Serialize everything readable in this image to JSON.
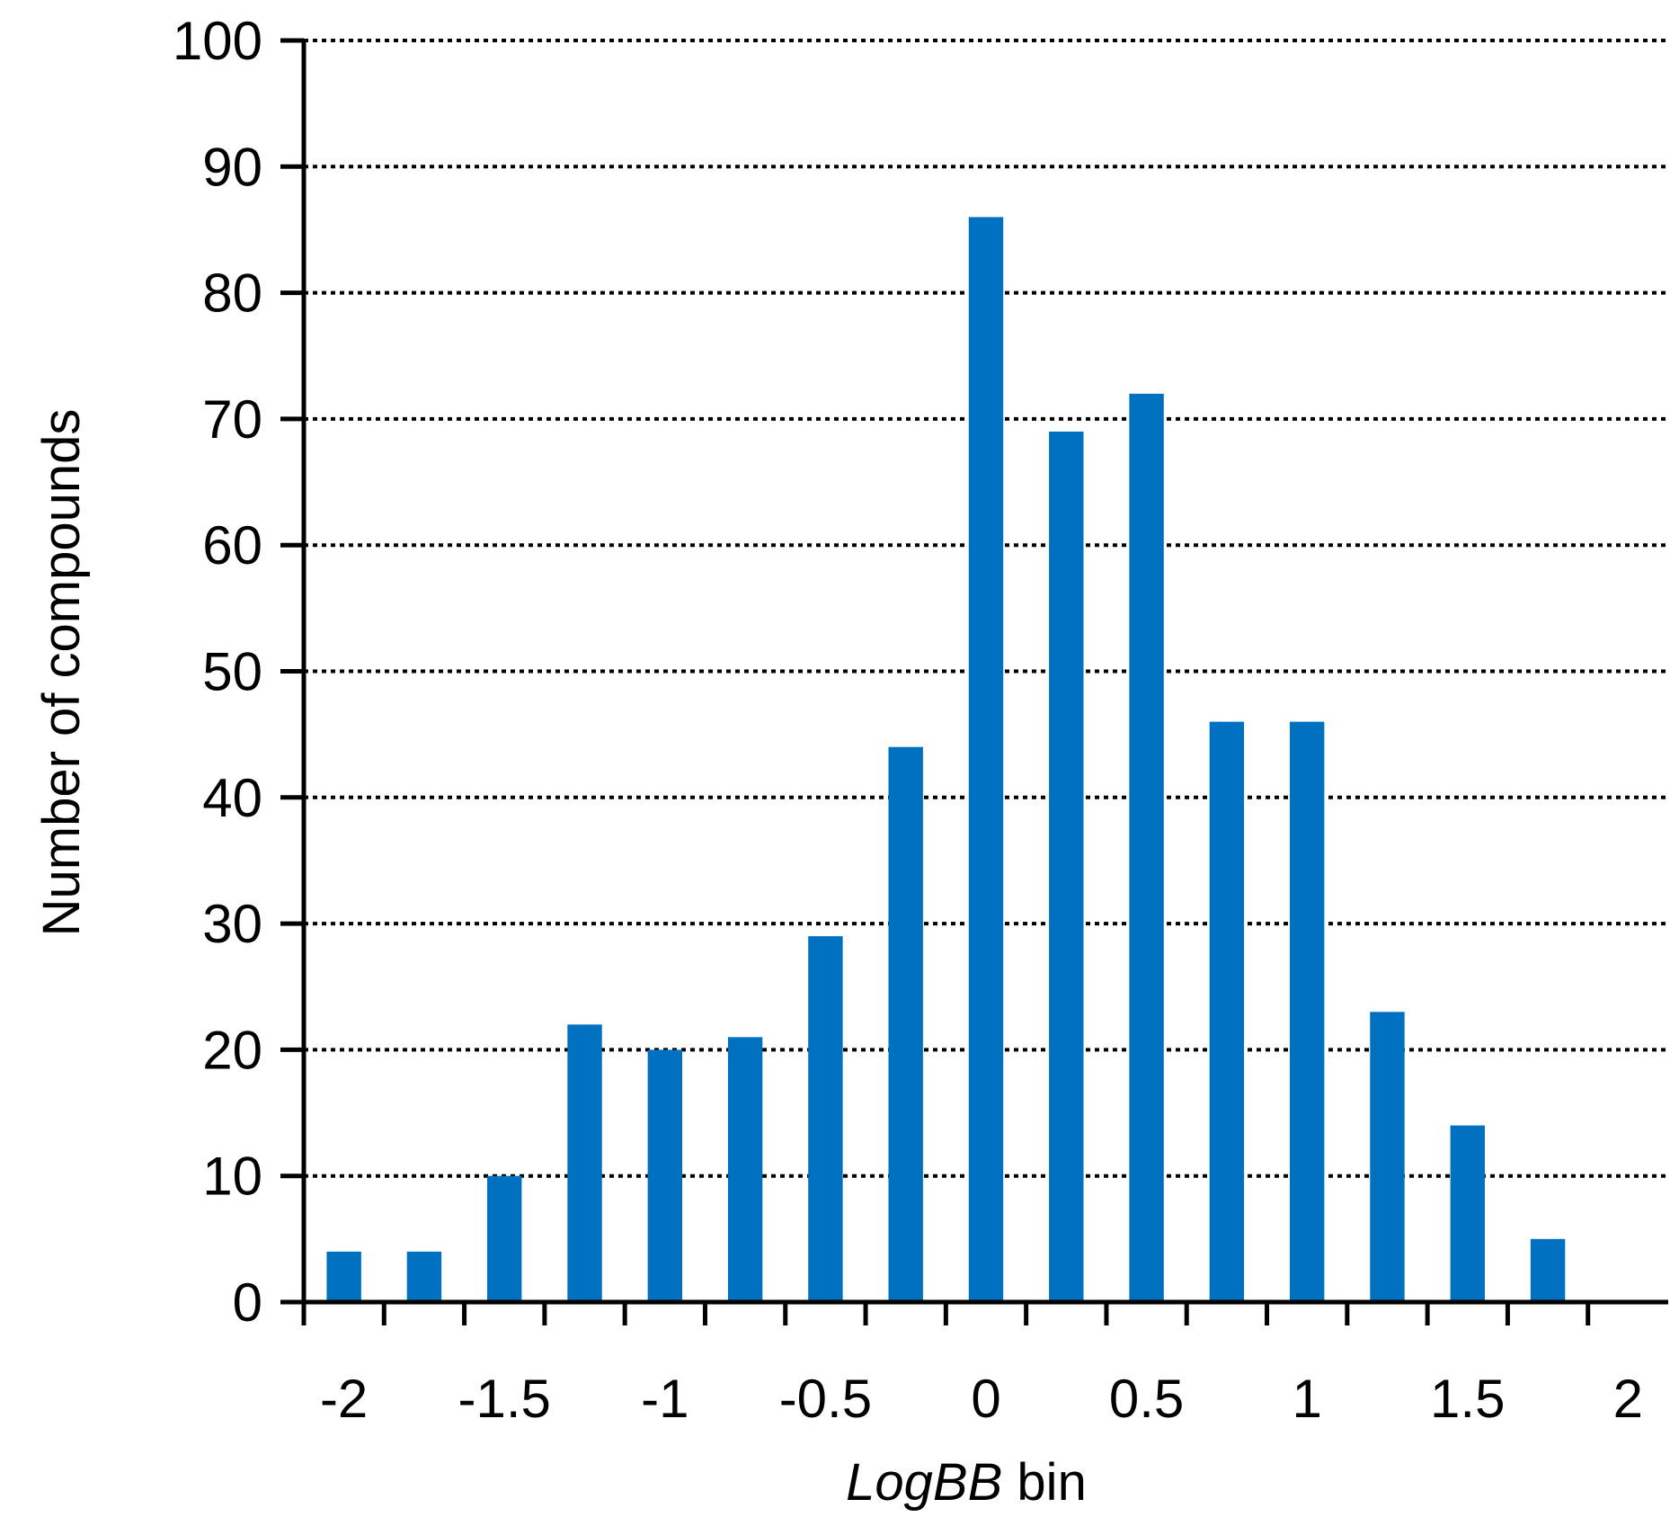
{
  "chart_data": {
    "type": "bar",
    "xlabel_italic": "LogBB",
    "xlabel_rest": " bin",
    "ylabel": "Number of compounds",
    "ylim": [
      0,
      100
    ],
    "xlim": [
      -2.125,
      2.125
    ],
    "yticks": [
      0,
      10,
      20,
      30,
      40,
      50,
      60,
      70,
      80,
      90,
      100
    ],
    "xtick_labels": [
      "-2",
      "-1.5",
      "-1",
      "-0.5",
      "0",
      "0.5",
      "1",
      "1.5",
      "2"
    ],
    "grid": "horizontal dotted",
    "bar_color": "#0070C0",
    "bins": [
      -2,
      -1.75,
      -1.5,
      -1.25,
      -1,
      -0.75,
      -0.5,
      -0.25,
      0,
      0.25,
      0.5,
      0.75,
      1,
      1.25,
      1.5,
      1.75
    ],
    "values": [
      4,
      4,
      10,
      22,
      20,
      21,
      29,
      44,
      86,
      69,
      72,
      46,
      46,
      23,
      14,
      5
    ]
  }
}
